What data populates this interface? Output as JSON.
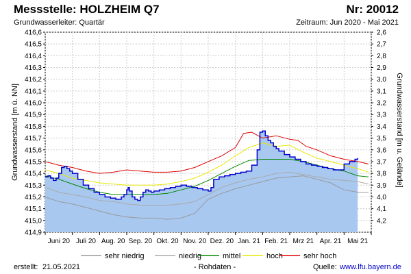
{
  "header": {
    "title": "Messstelle: HOLZHEIM Q7",
    "nr": "Nr: 20012",
    "subtitle": "Grundwasserleiter: Quartär",
    "period": "Zeitraum: Jun 2020 - Mai 2021"
  },
  "footer": {
    "created_label": "erstellt:",
    "created_date": "21.05.2021",
    "rohdaten": "- Rohdaten -",
    "quelle_label": "Quelle:",
    "quelle_url": "www.lfu.bayern.de"
  },
  "colors": {
    "measured_line": "#0000cc",
    "measured_fill": "#a8c8f0",
    "sehr_niedrig": "#999999",
    "niedrig": "#aaaaaa",
    "mittel": "#008800",
    "hoch": "#e8e800",
    "sehr_hoch": "#dd0000",
    "grid": "#cccccc"
  },
  "chart_data": {
    "type": "area",
    "title": "",
    "xlabel": "",
    "ylabel": "Grundwasserstand [m ü. NN]",
    "ylabel_right": "Grundwasserstand [m u. Gelände]",
    "ylim": [
      414.9,
      416.6
    ],
    "yticks": [
      "416,6",
      "416,5",
      "416,4",
      "416,3",
      "416,2",
      "416,1",
      "416,0",
      "415,9",
      "415,8",
      "415,7",
      "415,6",
      "415,5",
      "415,4",
      "415,3",
      "415,2",
      "415,1",
      "415,0",
      "414,9"
    ],
    "ylim_right": [
      4.3,
      2.6
    ],
    "yticks_right": [
      "2,6",
      "2,7",
      "2,8",
      "2,9",
      "3,0",
      "3,1",
      "3,2",
      "3,3",
      "3,4",
      "3,5",
      "3,6",
      "3,7",
      "3,8",
      "3,9",
      "4,0",
      "4,1",
      "4,2"
    ],
    "x_range_months": [
      0,
      12
    ],
    "x_tick_labels": [
      "Juni 20",
      "Juli 20",
      "Aug. 20",
      "Sep. 20",
      "Okt. 20",
      "Nov. 20",
      "Dez. 20",
      "Jan. 21",
      "Feb. 21",
      "Mrz 21",
      "Apr. 21",
      "Mai 21"
    ],
    "grid": true,
    "legend_position": "bottom",
    "series": [
      {
        "name": "Messwerte",
        "legend": false,
        "x": [
          0,
          0.1,
          0.2,
          0.3,
          0.4,
          0.5,
          0.6,
          0.7,
          0.8,
          0.9,
          1.0,
          1.2,
          1.4,
          1.6,
          1.8,
          2.0,
          2.2,
          2.4,
          2.6,
          2.8,
          2.9,
          3.0,
          3.05,
          3.1,
          3.2,
          3.3,
          3.4,
          3.5,
          3.6,
          3.7,
          3.8,
          3.9,
          4.0,
          4.2,
          4.4,
          4.6,
          4.8,
          5.0,
          5.2,
          5.4,
          5.6,
          5.8,
          6.0,
          6.1,
          6.2,
          6.4,
          6.6,
          6.8,
          7.0,
          7.2,
          7.4,
          7.6,
          7.8,
          7.9,
          8.0,
          8.1,
          8.2,
          8.3,
          8.4,
          8.5,
          8.6,
          8.8,
          9.0,
          9.2,
          9.4,
          9.6,
          9.8,
          10.0,
          10.2,
          10.4,
          10.6,
          10.8,
          11.0,
          11.2,
          11.4,
          11.5
        ],
        "values": [
          415.37,
          415.38,
          415.36,
          415.34,
          415.36,
          415.4,
          415.45,
          415.46,
          415.44,
          415.42,
          415.4,
          415.35,
          415.3,
          415.27,
          415.24,
          415.22,
          415.2,
          415.19,
          415.18,
          415.2,
          415.22,
          415.26,
          415.28,
          415.25,
          415.2,
          415.18,
          415.17,
          415.2,
          415.24,
          415.26,
          415.25,
          415.24,
          415.25,
          415.26,
          415.27,
          415.28,
          415.29,
          415.3,
          415.29,
          415.28,
          415.27,
          415.26,
          415.25,
          415.28,
          415.35,
          415.37,
          415.38,
          415.39,
          415.4,
          415.41,
          415.42,
          415.47,
          415.6,
          415.75,
          415.76,
          415.72,
          415.68,
          415.66,
          415.63,
          415.61,
          415.59,
          415.56,
          415.54,
          415.52,
          415.5,
          415.48,
          415.47,
          415.46,
          415.45,
          415.44,
          415.43,
          415.43,
          415.48,
          415.5,
          415.52,
          415.53
        ]
      },
      {
        "name": "sehr niedrig",
        "x": [
          0,
          0.5,
          1,
          1.5,
          2,
          2.5,
          3,
          3.5,
          4,
          4.5,
          5,
          5.5,
          6,
          6.5,
          7,
          7.5,
          8,
          8.5,
          9,
          9.5,
          10,
          10.5,
          11,
          11.5,
          11.9
        ],
        "values": [
          415.2,
          415.16,
          415.14,
          415.11,
          415.08,
          415.05,
          415.03,
          415.02,
          415.02,
          415.01,
          415.02,
          415.06,
          415.18,
          415.23,
          415.27,
          415.3,
          415.33,
          415.36,
          415.37,
          415.38,
          415.35,
          415.32,
          415.26,
          415.24,
          415.24
        ]
      },
      {
        "name": "niedrig",
        "x": [
          0,
          0.5,
          1,
          1.5,
          2,
          2.5,
          3,
          3.5,
          4,
          4.5,
          5,
          5.5,
          6,
          6.5,
          7,
          7.5,
          8,
          8.5,
          9,
          9.5,
          10,
          10.5,
          11,
          11.5,
          11.9
        ],
        "values": [
          415.28,
          415.24,
          415.22,
          415.2,
          415.17,
          415.16,
          415.14,
          415.13,
          415.13,
          415.13,
          415.14,
          415.16,
          415.22,
          415.28,
          415.32,
          415.35,
          415.37,
          415.4,
          415.41,
          415.39,
          415.37,
          415.35,
          415.34,
          415.33,
          415.31
        ]
      },
      {
        "name": "mittel",
        "x": [
          0,
          0.5,
          1,
          1.5,
          2,
          2.5,
          3,
          3.5,
          4,
          4.5,
          5,
          5.5,
          6,
          6.5,
          7,
          7.5,
          8,
          8.5,
          9,
          9.5,
          10,
          10.5,
          11,
          11.5,
          11.9
        ],
        "values": [
          415.38,
          415.35,
          415.31,
          415.27,
          415.24,
          415.22,
          415.22,
          415.22,
          415.22,
          415.23,
          415.26,
          415.29,
          415.34,
          415.4,
          415.46,
          415.51,
          415.52,
          415.52,
          415.52,
          415.5,
          415.47,
          415.44,
          415.42,
          415.38,
          415.37
        ]
      },
      {
        "name": "hoch",
        "x": [
          0,
          0.5,
          1,
          1.5,
          2,
          2.5,
          3,
          3.5,
          4,
          4.5,
          5,
          5.5,
          6,
          6.5,
          7,
          7.5,
          8,
          8.5,
          9,
          9.5,
          10,
          10.5,
          11,
          11.5,
          11.9
        ],
        "values": [
          415.43,
          415.4,
          415.36,
          415.34,
          415.32,
          415.31,
          415.3,
          415.3,
          415.3,
          415.31,
          415.33,
          415.36,
          415.41,
          415.47,
          415.55,
          415.62,
          415.66,
          415.63,
          415.64,
          415.58,
          415.53,
          415.5,
          415.47,
          415.44,
          415.41
        ]
      },
      {
        "name": "sehr hoch",
        "x": [
          0,
          0.5,
          1,
          1.5,
          2,
          2.5,
          3,
          3.5,
          4,
          4.5,
          5,
          5.5,
          6,
          6.5,
          7,
          7.3,
          7.6,
          8,
          8.5,
          9,
          9.3,
          9.6,
          10,
          10.5,
          11,
          11.5,
          11.9
        ],
        "values": [
          415.5,
          415.47,
          415.45,
          415.42,
          415.4,
          415.41,
          415.43,
          415.42,
          415.41,
          415.41,
          415.42,
          415.45,
          415.5,
          415.55,
          415.62,
          415.74,
          415.75,
          415.7,
          415.72,
          415.69,
          415.68,
          415.63,
          415.6,
          415.55,
          415.52,
          415.5,
          415.48
        ]
      }
    ]
  }
}
